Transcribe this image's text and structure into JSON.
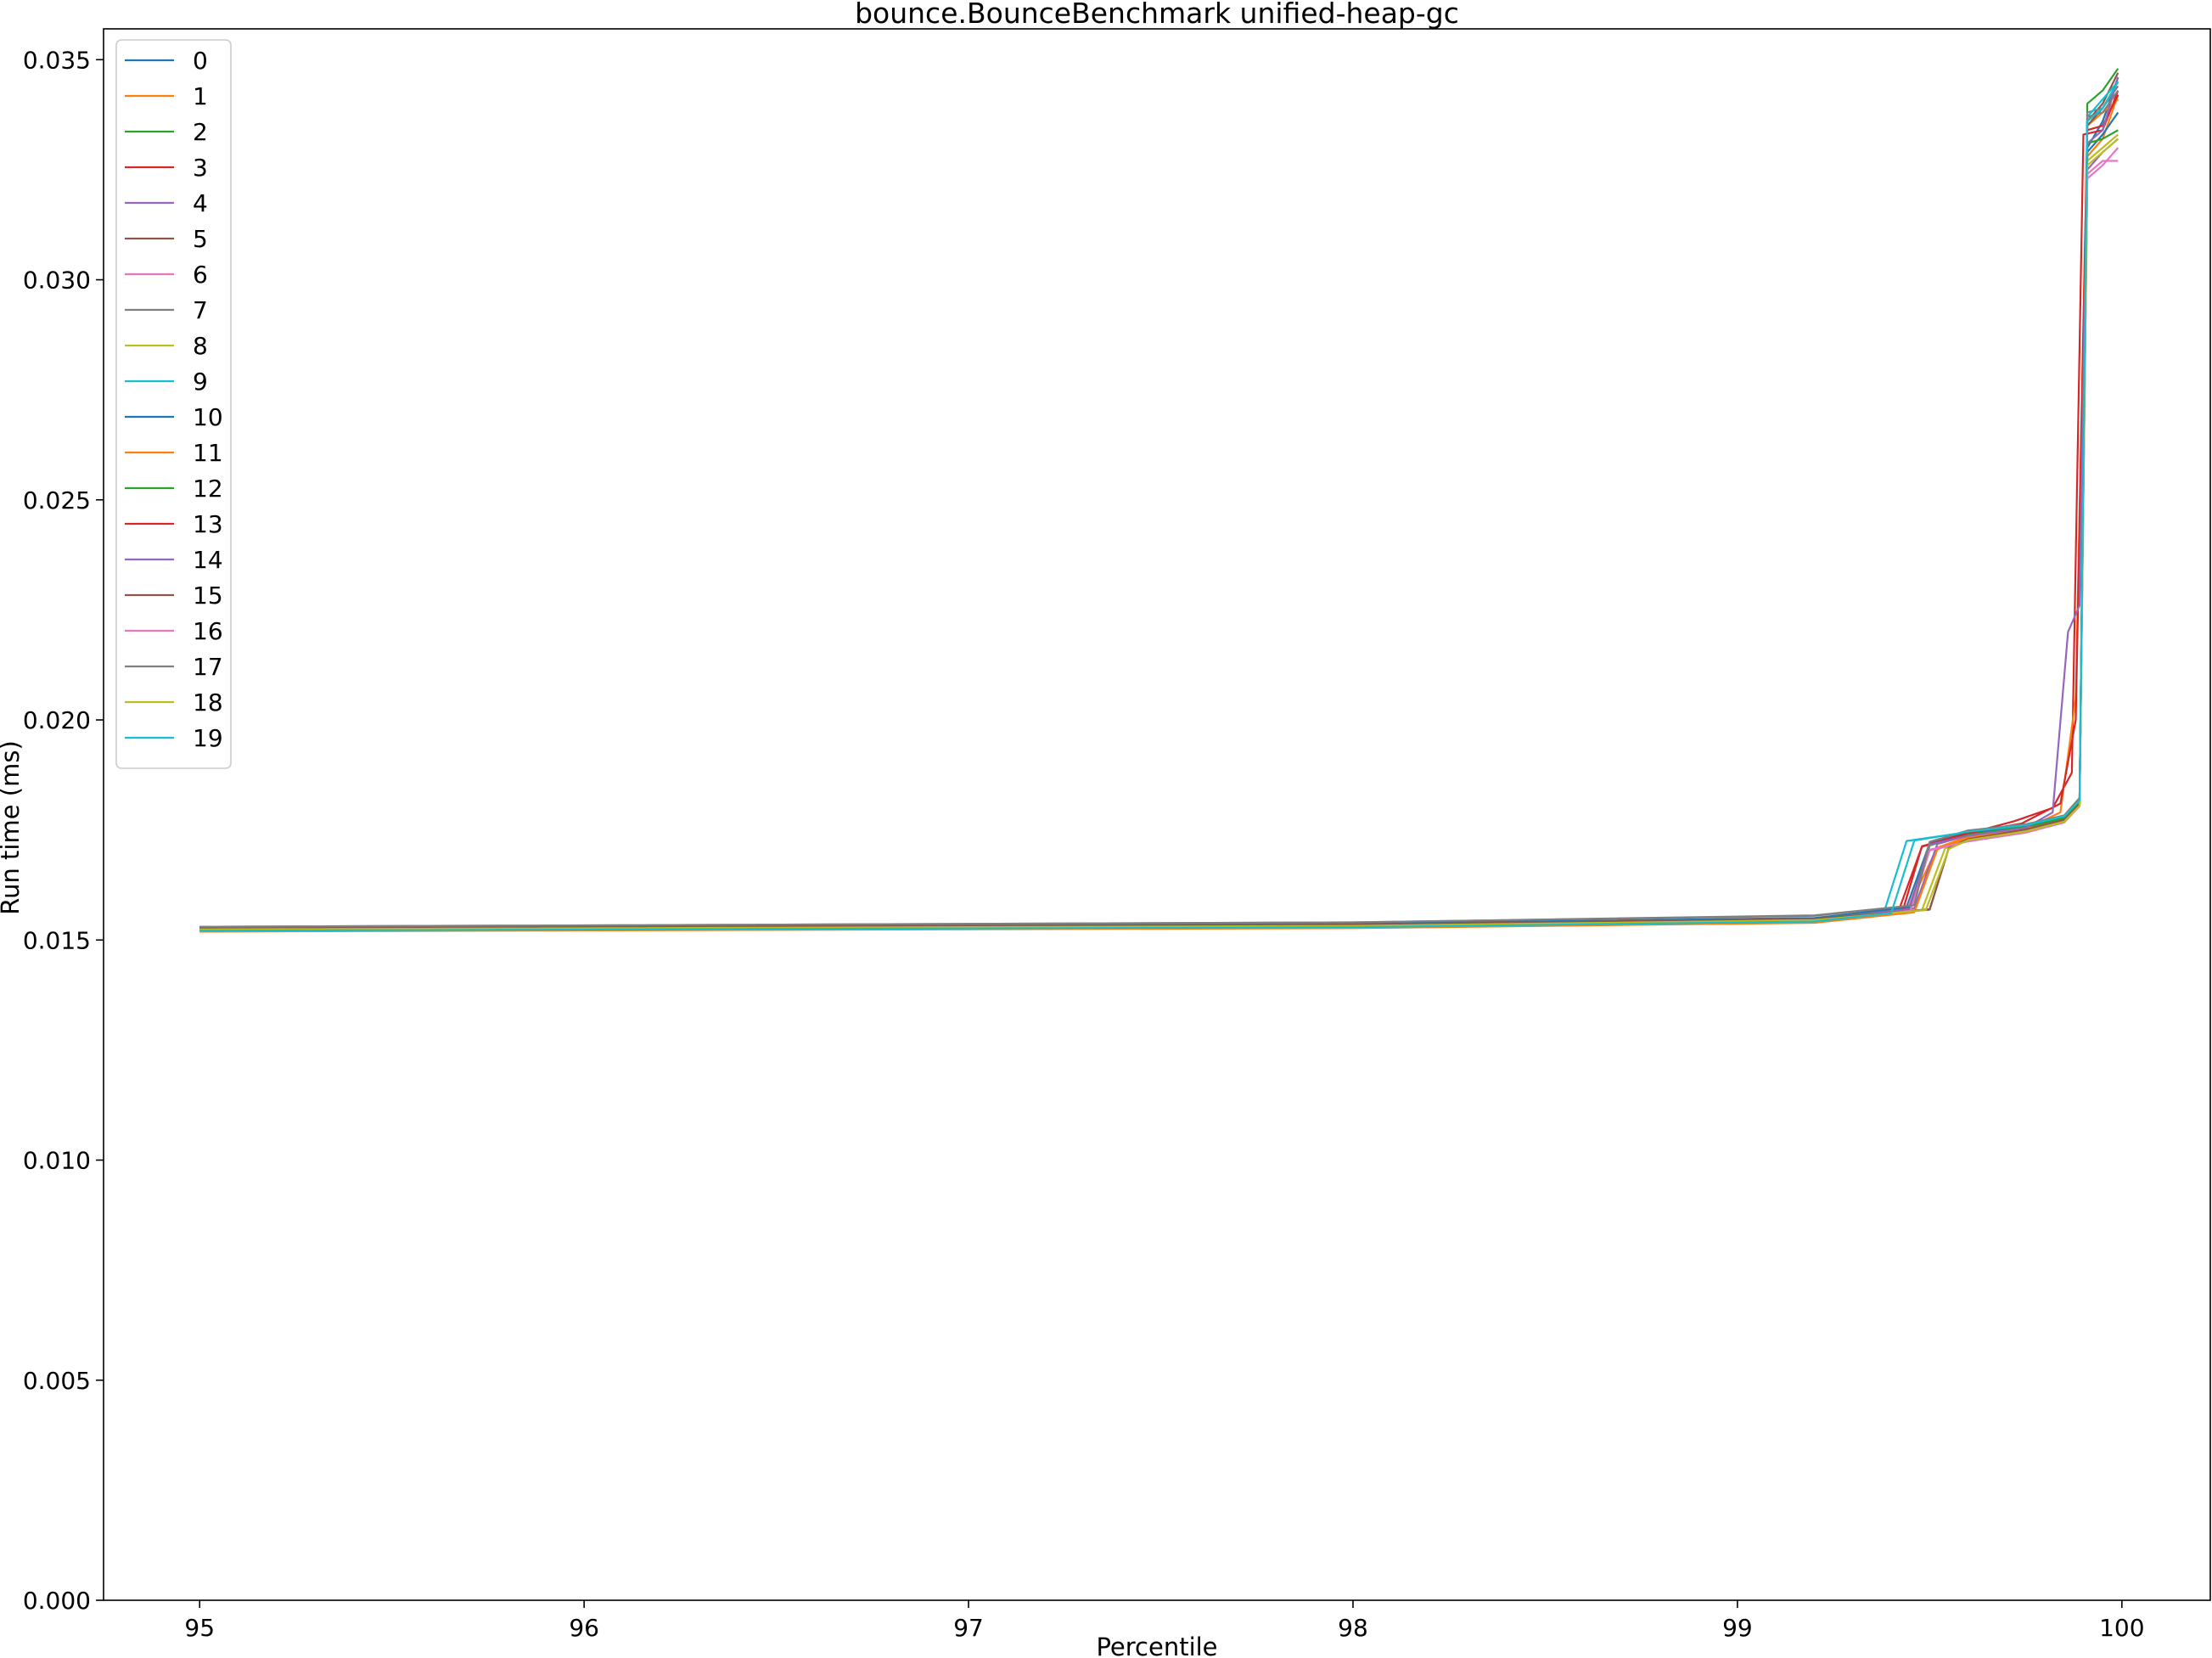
{
  "chart_data": {
    "type": "line",
    "title": "bounce.BounceBenchmark unified-heap-gc",
    "xlabel": "Percentile",
    "ylabel": "Run time (ms)",
    "xlim": [
      94.75,
      100.23
    ],
    "ylim": [
      0.0,
      0.0357
    ],
    "xticks": [
      95,
      96,
      97,
      98,
      99,
      100
    ],
    "xtick_labels": [
      "95",
      "96",
      "97",
      "98",
      "99",
      "100"
    ],
    "yticks": [
      0.0,
      0.005,
      0.01,
      0.015,
      0.02,
      0.025,
      0.03,
      0.035
    ],
    "ytick_labels": [
      "0.000",
      "0.005",
      "0.010",
      "0.015",
      "0.020",
      "0.025",
      "0.030",
      "0.035"
    ],
    "grid": false,
    "legend_position": "top-left",
    "series": [
      {
        "name": "0",
        "color": "#1f77b4",
        "points": [
          [
            95,
            0.01528
          ],
          [
            98,
            0.01536
          ],
          [
            99.2,
            0.01549
          ],
          [
            99.44,
            0.01575
          ],
          [
            99.5,
            0.0172
          ],
          [
            99.6,
            0.01745
          ],
          [
            99.75,
            0.0176
          ],
          [
            99.85,
            0.0178
          ],
          [
            99.89,
            0.0182
          ],
          [
            99.91,
            0.033
          ],
          [
            99.95,
            0.0336
          ],
          [
            99.99,
            0.0346
          ]
        ]
      },
      {
        "name": "1",
        "color": "#ff7f0e",
        "points": [
          [
            95,
            0.0152
          ],
          [
            98,
            0.01528
          ],
          [
            99.2,
            0.0154
          ],
          [
            99.44,
            0.01565
          ],
          [
            99.52,
            0.0171
          ],
          [
            99.6,
            0.01735
          ],
          [
            99.75,
            0.01755
          ],
          [
            99.85,
            0.01775
          ],
          [
            99.89,
            0.0181
          ],
          [
            99.91,
            0.0328
          ],
          [
            99.95,
            0.0332
          ],
          [
            99.99,
            0.0342
          ]
        ]
      },
      {
        "name": "2",
        "color": "#2ca02c",
        "points": [
          [
            95,
            0.01525
          ],
          [
            98,
            0.01533
          ],
          [
            99.2,
            0.01546
          ],
          [
            99.45,
            0.0157
          ],
          [
            99.5,
            0.01715
          ],
          [
            99.6,
            0.0174
          ],
          [
            99.75,
            0.01758
          ],
          [
            99.85,
            0.01778
          ],
          [
            99.89,
            0.01815
          ],
          [
            99.91,
            0.034
          ],
          [
            99.95,
            0.0343
          ],
          [
            99.99,
            0.0348
          ]
        ]
      },
      {
        "name": "3",
        "color": "#d62728",
        "points": [
          [
            95,
            0.01523
          ],
          [
            98,
            0.01531
          ],
          [
            99.2,
            0.01544
          ],
          [
            99.42,
            0.01568
          ],
          [
            99.48,
            0.01712
          ],
          [
            99.6,
            0.01742
          ],
          [
            99.72,
            0.0177
          ],
          [
            99.82,
            0.018
          ],
          [
            99.87,
            0.0188
          ],
          [
            99.9,
            0.0333
          ],
          [
            99.95,
            0.0334
          ],
          [
            99.99,
            0.0343
          ]
        ]
      },
      {
        "name": "4",
        "color": "#9467bd",
        "points": [
          [
            95,
            0.01526
          ],
          [
            98,
            0.01534
          ],
          [
            99.2,
            0.01547
          ],
          [
            99.46,
            0.01572
          ],
          [
            99.52,
            0.01718
          ],
          [
            99.6,
            0.01738
          ],
          [
            99.75,
            0.01756
          ],
          [
            99.85,
            0.01776
          ],
          [
            99.89,
            0.01812
          ],
          [
            99.91,
            0.0325
          ],
          [
            99.95,
            0.0329
          ],
          [
            99.99,
            0.0332
          ]
        ]
      },
      {
        "name": "5",
        "color": "#8c564b",
        "points": [
          [
            95,
            0.01527
          ],
          [
            98,
            0.01535
          ],
          [
            99.2,
            0.01548
          ],
          [
            99.5,
            0.0157
          ],
          [
            99.55,
            0.0171
          ],
          [
            99.6,
            0.0173
          ],
          [
            99.75,
            0.0175
          ],
          [
            99.85,
            0.01772
          ],
          [
            99.89,
            0.01808
          ],
          [
            99.91,
            0.0336
          ],
          [
            99.95,
            0.034
          ],
          [
            99.99,
            0.0347
          ]
        ]
      },
      {
        "name": "6",
        "color": "#e377c2",
        "points": [
          [
            95,
            0.01522
          ],
          [
            98,
            0.0153
          ],
          [
            99.2,
            0.01543
          ],
          [
            99.44,
            0.01566
          ],
          [
            99.5,
            0.01705
          ],
          [
            99.6,
            0.01725
          ],
          [
            99.75,
            0.01745
          ],
          [
            99.85,
            0.01768
          ],
          [
            99.89,
            0.01805
          ],
          [
            99.91,
            0.0323
          ],
          [
            99.95,
            0.0326
          ],
          [
            99.99,
            0.033
          ]
        ]
      },
      {
        "name": "7",
        "color": "#7f7f7f",
        "points": [
          [
            95,
            0.0153
          ],
          [
            98,
            0.0154
          ],
          [
            99.2,
            0.01555
          ],
          [
            99.45,
            0.01578
          ],
          [
            99.5,
            0.01722
          ],
          [
            99.6,
            0.01748
          ],
          [
            99.75,
            0.01762
          ],
          [
            99.85,
            0.01782
          ],
          [
            99.89,
            0.01822
          ],
          [
            99.91,
            0.0338
          ],
          [
            99.95,
            0.0339
          ],
          [
            99.99,
            0.0344
          ]
        ]
      },
      {
        "name": "8",
        "color": "#bcbd22",
        "points": [
          [
            95,
            0.01524
          ],
          [
            98,
            0.01532
          ],
          [
            99.2,
            0.01545
          ],
          [
            99.48,
            0.01568
          ],
          [
            99.54,
            0.01708
          ],
          [
            99.6,
            0.01728
          ],
          [
            99.75,
            0.01748
          ],
          [
            99.85,
            0.0177
          ],
          [
            99.89,
            0.01806
          ],
          [
            99.91,
            0.0327
          ],
          [
            99.95,
            0.033
          ],
          [
            99.99,
            0.0333
          ]
        ]
      },
      {
        "name": "9",
        "color": "#17becf",
        "points": [
          [
            95,
            0.01521
          ],
          [
            98,
            0.01529
          ],
          [
            99.2,
            0.01542
          ],
          [
            99.38,
            0.0156
          ],
          [
            99.44,
            0.01725
          ],
          [
            99.6,
            0.01745
          ],
          [
            99.75,
            0.0176
          ],
          [
            99.85,
            0.0178
          ],
          [
            99.89,
            0.01818
          ],
          [
            99.91,
            0.0337
          ],
          [
            99.95,
            0.0341
          ],
          [
            99.99,
            0.0345
          ]
        ]
      },
      {
        "name": "10",
        "color": "#1f77b4",
        "points": [
          [
            95,
            0.01529
          ],
          [
            98,
            0.01537
          ],
          [
            99.2,
            0.0155
          ],
          [
            99.45,
            0.01574
          ],
          [
            99.5,
            0.01719
          ],
          [
            99.6,
            0.01744
          ],
          [
            99.75,
            0.01759
          ],
          [
            99.85,
            0.01779
          ],
          [
            99.89,
            0.01819
          ],
          [
            99.91,
            0.0329
          ],
          [
            99.95,
            0.0333
          ],
          [
            99.99,
            0.0338
          ]
        ]
      },
      {
        "name": "11",
        "color": "#ff7f0e",
        "points": [
          [
            95,
            0.01519
          ],
          [
            98,
            0.01527
          ],
          [
            99.2,
            0.01539
          ],
          [
            99.46,
            0.01563
          ],
          [
            99.52,
            0.01706
          ],
          [
            99.6,
            0.01733
          ],
          [
            99.75,
            0.01753
          ],
          [
            99.84,
            0.0179
          ],
          [
            99.88,
            0.0205
          ],
          [
            99.91,
            0.0335
          ],
          [
            99.95,
            0.0338
          ],
          [
            99.99,
            0.0341
          ]
        ]
      },
      {
        "name": "12",
        "color": "#2ca02c",
        "points": [
          [
            95,
            0.01526
          ],
          [
            98,
            0.01534
          ],
          [
            99.2,
            0.01547
          ],
          [
            99.45,
            0.01571
          ],
          [
            99.5,
            0.01716
          ],
          [
            99.6,
            0.01739
          ],
          [
            99.75,
            0.01757
          ],
          [
            99.85,
            0.01777
          ],
          [
            99.89,
            0.01813
          ],
          [
            99.91,
            0.0331
          ],
          [
            99.95,
            0.0332
          ],
          [
            99.99,
            0.0334
          ]
        ]
      },
      {
        "name": "13",
        "color": "#d62728",
        "points": [
          [
            95,
            0.01523
          ],
          [
            98,
            0.01531
          ],
          [
            99.2,
            0.01544
          ],
          [
            99.43,
            0.01567
          ],
          [
            99.48,
            0.01713
          ],
          [
            99.6,
            0.01743
          ],
          [
            99.74,
            0.01765
          ],
          [
            99.84,
            0.0181
          ],
          [
            99.88,
            0.02
          ],
          [
            99.91,
            0.0334
          ],
          [
            99.95,
            0.0335
          ],
          [
            99.99,
            0.0342
          ]
        ]
      },
      {
        "name": "14",
        "color": "#9467bd",
        "points": [
          [
            95,
            0.01525
          ],
          [
            98,
            0.01533
          ],
          [
            99.2,
            0.01546
          ],
          [
            99.45,
            0.01571
          ],
          [
            99.5,
            0.01717
          ],
          [
            99.6,
            0.01737
          ],
          [
            99.75,
            0.01755
          ],
          [
            99.82,
            0.0179
          ],
          [
            99.86,
            0.022
          ],
          [
            99.89,
            0.0226
          ],
          [
            99.91,
            0.0331
          ],
          [
            99.95,
            0.0334
          ],
          [
            99.99,
            0.0346
          ]
        ]
      },
      {
        "name": "15",
        "color": "#8c564b",
        "points": [
          [
            95,
            0.01527
          ],
          [
            98,
            0.01535
          ],
          [
            99.2,
            0.01548
          ],
          [
            99.5,
            0.01569
          ],
          [
            99.55,
            0.01709
          ],
          [
            99.6,
            0.01729
          ],
          [
            99.75,
            0.01751
          ],
          [
            99.85,
            0.01773
          ],
          [
            99.89,
            0.01809
          ],
          [
            99.91,
            0.0335
          ],
          [
            99.95,
            0.0339
          ],
          [
            99.99,
            0.0345
          ]
        ]
      },
      {
        "name": "16",
        "color": "#e377c2",
        "points": [
          [
            95,
            0.01522
          ],
          [
            98,
            0.0153
          ],
          [
            99.2,
            0.01543
          ],
          [
            99.45,
            0.01566
          ],
          [
            99.5,
            0.01704
          ],
          [
            99.6,
            0.01724
          ],
          [
            99.75,
            0.01744
          ],
          [
            99.85,
            0.01767
          ],
          [
            99.89,
            0.01804
          ],
          [
            99.91,
            0.0324
          ],
          [
            99.95,
            0.0327
          ],
          [
            99.99,
            0.0327
          ]
        ]
      },
      {
        "name": "17",
        "color": "#7f7f7f",
        "points": [
          [
            95,
            0.0153
          ],
          [
            98,
            0.0154
          ],
          [
            99.2,
            0.01556
          ],
          [
            99.46,
            0.01579
          ],
          [
            99.5,
            0.01723
          ],
          [
            99.6,
            0.01749
          ],
          [
            99.75,
            0.01763
          ],
          [
            99.85,
            0.01783
          ],
          [
            99.89,
            0.01823
          ],
          [
            99.91,
            0.0337
          ],
          [
            99.95,
            0.0338
          ],
          [
            99.99,
            0.0343
          ]
        ]
      },
      {
        "name": "18",
        "color": "#bcbd22",
        "points": [
          [
            95,
            0.01524
          ],
          [
            98,
            0.01532
          ],
          [
            99.2,
            0.01545
          ],
          [
            99.49,
            0.01568
          ],
          [
            99.55,
            0.01707
          ],
          [
            99.6,
            0.01727
          ],
          [
            99.75,
            0.01747
          ],
          [
            99.85,
            0.01769
          ],
          [
            99.89,
            0.01805
          ],
          [
            99.91,
            0.0326
          ],
          [
            99.95,
            0.0329
          ],
          [
            99.99,
            0.0332
          ]
        ]
      },
      {
        "name": "19",
        "color": "#17becf",
        "points": [
          [
            95,
            0.01521
          ],
          [
            98,
            0.01529
          ],
          [
            99.2,
            0.01542
          ],
          [
            99.4,
            0.01561
          ],
          [
            99.46,
            0.01726
          ],
          [
            99.6,
            0.01746
          ],
          [
            99.75,
            0.01761
          ],
          [
            99.85,
            0.01781
          ],
          [
            99.89,
            0.01817
          ],
          [
            99.91,
            0.0336
          ],
          [
            99.95,
            0.0339
          ],
          [
            99.99,
            0.0345
          ]
        ]
      }
    ]
  }
}
